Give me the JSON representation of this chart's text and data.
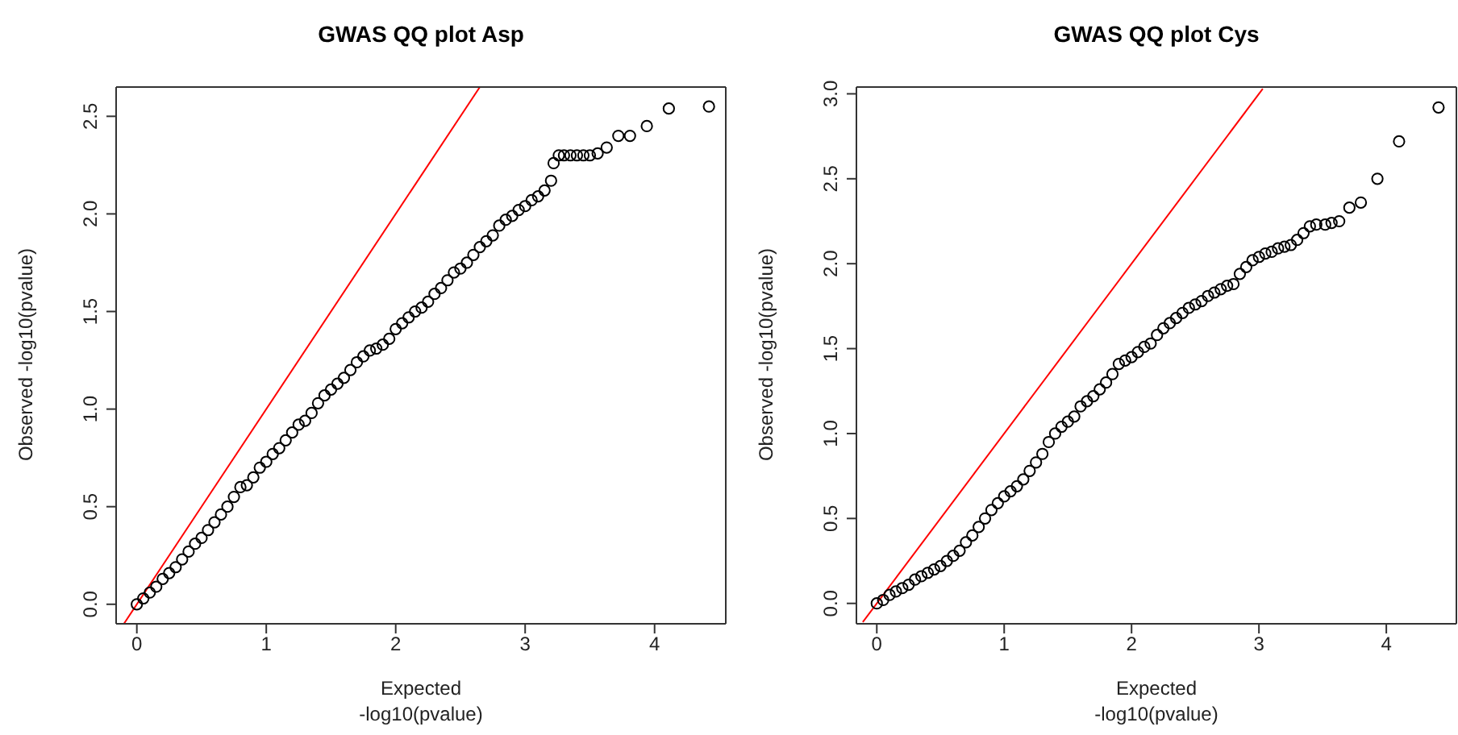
{
  "chart_data": [
    {
      "type": "scatter",
      "title": "GWAS QQ plot Asp",
      "xlabel": "Expected\n-log10(pvalue)",
      "ylabel": "Observed -log10(pvalue)",
      "xlim": [
        -0.16,
        4.55
      ],
      "ylim": [
        -0.1,
        2.65
      ],
      "xticks": [
        0,
        1,
        2,
        3,
        4
      ],
      "yticks": [
        {
          "value": 0,
          "label": "0.0"
        },
        0.5,
        {
          "value": 1,
          "label": "1.0"
        },
        1.5,
        {
          "value": 2,
          "label": "2.0"
        },
        2.5
      ],
      "series": [
        {
          "color": "#000000",
          "marker": "circle",
          "x": [
            0,
            0.05,
            0.1,
            0.15,
            0.2,
            0.25,
            0.3,
            0.35,
            0.4,
            0.45,
            0.5,
            0.55,
            0.6,
            0.65,
            0.7,
            0.75,
            0.8,
            0.85,
            0.9,
            0.95,
            1.0,
            1.05,
            1.1,
            1.15,
            1.2,
            1.25,
            1.3,
            1.35,
            1.4,
            1.45,
            1.5,
            1.55,
            1.6,
            1.65,
            1.7,
            1.75,
            1.8,
            1.85,
            1.9,
            1.95,
            2.0,
            2.05,
            2.1,
            2.15,
            2.2,
            2.25,
            2.3,
            2.35,
            2.4,
            2.45,
            2.5,
            2.55,
            2.6,
            2.65,
            2.7,
            2.75,
            2.8,
            2.85,
            2.9,
            2.95,
            3.0,
            3.05,
            3.1,
            3.15,
            3.2,
            3.22,
            3.26,
            3.3,
            3.35,
            3.4,
            3.45,
            3.5,
            3.56,
            3.63,
            3.72,
            3.81,
            3.94,
            4.11,
            4.42
          ],
          "values": [
            0,
            0.03,
            0.06,
            0.09,
            0.13,
            0.16,
            0.19,
            0.23,
            0.27,
            0.31,
            0.34,
            0.38,
            0.42,
            0.46,
            0.5,
            0.55,
            0.6,
            0.61,
            0.65,
            0.7,
            0.73,
            0.77,
            0.8,
            0.84,
            0.88,
            0.92,
            0.94,
            0.98,
            1.03,
            1.07,
            1.1,
            1.13,
            1.16,
            1.2,
            1.24,
            1.27,
            1.3,
            1.31,
            1.33,
            1.36,
            1.41,
            1.44,
            1.47,
            1.5,
            1.52,
            1.55,
            1.59,
            1.62,
            1.66,
            1.7,
            1.72,
            1.75,
            1.79,
            1.83,
            1.86,
            1.89,
            1.94,
            1.97,
            1.99,
            2.02,
            2.04,
            2.07,
            2.09,
            2.12,
            2.17,
            2.26,
            2.3,
            2.3,
            2.3,
            2.3,
            2.3,
            2.3,
            2.31,
            2.34,
            2.4,
            2.4,
            2.45,
            2.54,
            2.55
          ]
        },
        {
          "type": "line",
          "color": "#ff0000",
          "x": [
            -0.1,
            2.65
          ],
          "values": [
            -0.1,
            2.65
          ]
        }
      ]
    },
    {
      "type": "scatter",
      "title": "GWAS QQ plot Cys",
      "xlabel": "Expected\n-log10(pvalue)",
      "ylabel": "Observed -log10(pvalue)",
      "xlim": [
        -0.16,
        4.55
      ],
      "ylim": [
        -0.12,
        3.04
      ],
      "xticks": [
        0,
        1,
        2,
        3,
        4
      ],
      "yticks": [
        {
          "value": 0,
          "label": "0.0"
        },
        0.5,
        {
          "value": 1,
          "label": "1.0"
        },
        1.5,
        {
          "value": 2,
          "label": "2.0"
        },
        2.5,
        {
          "value": 3,
          "label": "3.0"
        }
      ],
      "series": [
        {
          "color": "#000000",
          "marker": "circle",
          "x": [
            0,
            0.05,
            0.1,
            0.15,
            0.2,
            0.25,
            0.3,
            0.35,
            0.4,
            0.45,
            0.5,
            0.55,
            0.6,
            0.65,
            0.7,
            0.75,
            0.8,
            0.85,
            0.9,
            0.95,
            1.0,
            1.05,
            1.1,
            1.15,
            1.2,
            1.25,
            1.3,
            1.35,
            1.4,
            1.45,
            1.5,
            1.55,
            1.6,
            1.65,
            1.7,
            1.75,
            1.8,
            1.85,
            1.9,
            1.95,
            2.0,
            2.05,
            2.1,
            2.15,
            2.2,
            2.25,
            2.3,
            2.35,
            2.4,
            2.45,
            2.5,
            2.55,
            2.6,
            2.65,
            2.7,
            2.75,
            2.8,
            2.85,
            2.9,
            2.95,
            3.0,
            3.05,
            3.1,
            3.15,
            3.2,
            3.25,
            3.3,
            3.35,
            3.4,
            3.45,
            3.52,
            3.57,
            3.63,
            3.71,
            3.8,
            3.93,
            4.1,
            4.41
          ],
          "values": [
            0,
            0.02,
            0.05,
            0.07,
            0.09,
            0.11,
            0.14,
            0.16,
            0.18,
            0.2,
            0.22,
            0.25,
            0.28,
            0.31,
            0.36,
            0.4,
            0.45,
            0.5,
            0.55,
            0.59,
            0.63,
            0.66,
            0.69,
            0.73,
            0.78,
            0.83,
            0.88,
            0.95,
            1.0,
            1.04,
            1.07,
            1.1,
            1.16,
            1.19,
            1.22,
            1.26,
            1.3,
            1.35,
            1.41,
            1.43,
            1.45,
            1.48,
            1.51,
            1.53,
            1.58,
            1.62,
            1.65,
            1.68,
            1.71,
            1.74,
            1.76,
            1.78,
            1.81,
            1.83,
            1.85,
            1.87,
            1.88,
            1.94,
            1.98,
            2.02,
            2.04,
            2.06,
            2.07,
            2.09,
            2.1,
            2.11,
            2.14,
            2.18,
            2.22,
            2.23,
            2.23,
            2.24,
            2.25,
            2.33,
            2.36,
            2.5,
            2.72,
            2.92
          ]
        },
        {
          "type": "line",
          "color": "#ff0000",
          "x": [
            -0.11,
            3.03
          ],
          "values": [
            -0.11,
            3.03
          ]
        }
      ]
    }
  ]
}
